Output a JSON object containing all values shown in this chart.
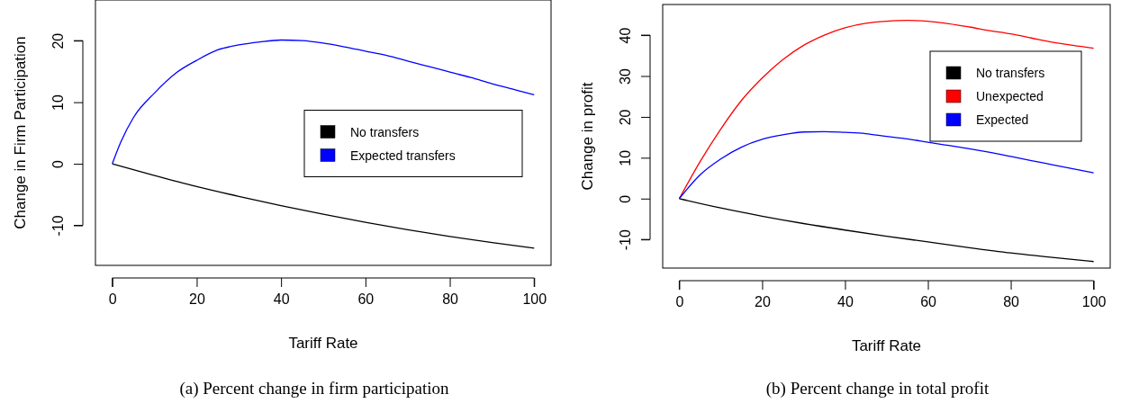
{
  "chart_data": [
    {
      "type": "line",
      "xlabel": "Tariff Rate",
      "ylabel": "Change in Firm Participation",
      "xlim": [
        -4,
        104
      ],
      "ylim": [
        -16.5,
        26.6
      ],
      "xticks": [
        0,
        20,
        40,
        60,
        80,
        100
      ],
      "yticks": [
        -10,
        0,
        10,
        20
      ],
      "legend": "right",
      "grid": false,
      "annotations": [
        "(a) Percent change in firm participation"
      ],
      "series": [
        {
          "name": "No transfers",
          "color": "#000000",
          "x": [
            0,
            10,
            20,
            30,
            40,
            50,
            60,
            70,
            80,
            90,
            100
          ],
          "values": [
            0,
            -1.9,
            -3.7,
            -5.3,
            -6.8,
            -8.2,
            -9.5,
            -10.7,
            -11.8,
            -12.8,
            -13.7
          ]
        },
        {
          "name": "Expected transfers",
          "color": "#0000ff",
          "x": [
            0,
            2,
            5,
            10,
            15,
            20,
            25,
            30,
            35,
            40,
            45,
            50,
            55,
            60,
            65,
            70,
            75,
            80,
            85,
            90,
            95,
            100
          ],
          "values": [
            0,
            3.5,
            7.5,
            11.5,
            14.7,
            16.8,
            18.5,
            19.3,
            19.8,
            20.1,
            20,
            19.6,
            19,
            18.3,
            17.6,
            16.7,
            15.8,
            14.9,
            14,
            13,
            12.1,
            11.2
          ]
        }
      ]
    },
    {
      "type": "line",
      "xlabel": "Tariff Rate",
      "ylabel": "Change in profit",
      "xlim": [
        -4,
        104
      ],
      "ylim": [
        -17,
        47.5
      ],
      "xticks": [
        0,
        20,
        40,
        60,
        80,
        100
      ],
      "yticks": [
        -10,
        0,
        10,
        20,
        30,
        40
      ],
      "legend": "top right",
      "grid": false,
      "annotations": [
        "(b) Percent change in total profit"
      ],
      "series": [
        {
          "name": "No transfers",
          "color": "#000000",
          "x": [
            0,
            10,
            20,
            30,
            40,
            50,
            60,
            70,
            80,
            90,
            100
          ],
          "values": [
            0,
            -2.3,
            -4.3,
            -6.1,
            -7.7,
            -9.2,
            -10.6,
            -12,
            -13.3,
            -14.4,
            -15.4
          ]
        },
        {
          "name": "Unexpected",
          "color": "#ff0000",
          "x": [
            0,
            5,
            10,
            15,
            20,
            25,
            30,
            35,
            40,
            45,
            50,
            55,
            60,
            65,
            70,
            75,
            80,
            85,
            90,
            95,
            100
          ],
          "values": [
            0,
            9,
            17,
            24,
            29.5,
            34,
            37.5,
            40,
            41.8,
            42.9,
            43.4,
            43.6,
            43.4,
            42.8,
            42,
            41.1,
            40.3,
            39.3,
            38.3,
            37.5,
            36.8
          ]
        },
        {
          "name": "Expected",
          "color": "#0000ff",
          "x": [
            0,
            5,
            10,
            15,
            20,
            25,
            30,
            35,
            40,
            45,
            50,
            55,
            60,
            65,
            70,
            75,
            80,
            85,
            90,
            95,
            100
          ],
          "values": [
            0,
            5.8,
            9.7,
            12.6,
            14.5,
            15.6,
            16.3,
            16.4,
            16.2,
            15.9,
            15.2,
            14.6,
            13.8,
            13,
            12.2,
            11.3,
            10.3,
            9.3,
            8.3,
            7.3,
            6.3
          ]
        }
      ]
    }
  ]
}
